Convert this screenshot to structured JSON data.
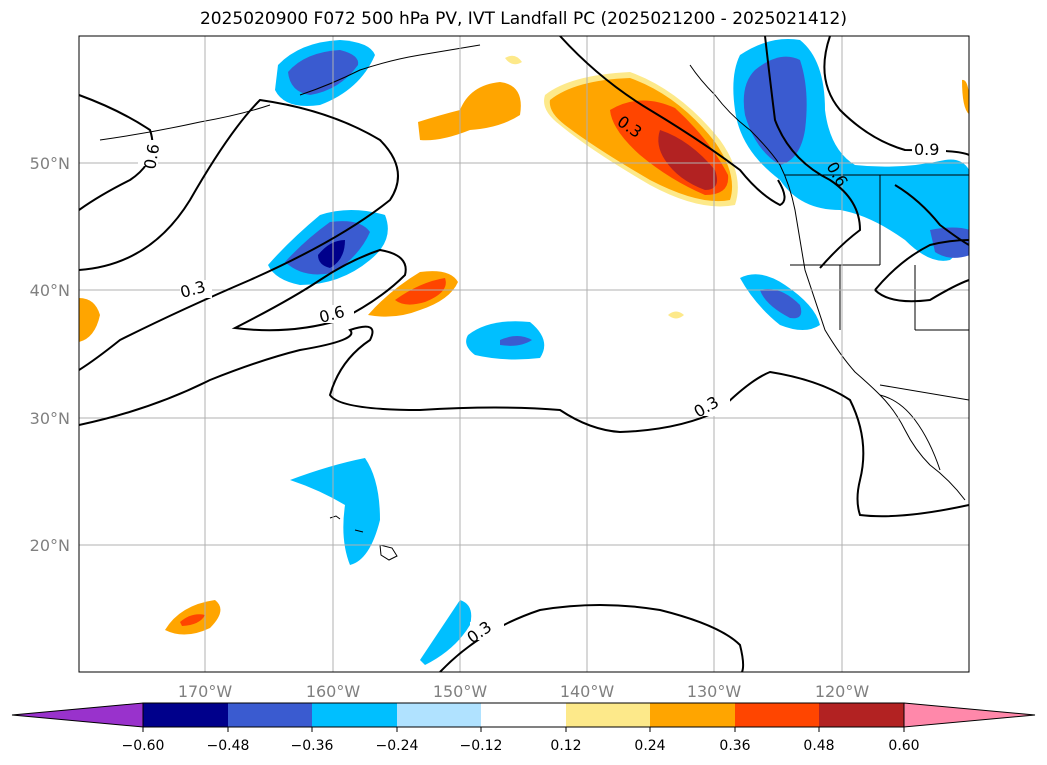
{
  "title": "2025020900 F072 500 hPa PV, IVT Landfall PC (2025021200 - 2025021412)",
  "map": {
    "lon_ticks": [
      "170°W",
      "160°W",
      "150°W",
      "140°W",
      "130°W",
      "120°W"
    ],
    "lat_ticks": [
      "50°N",
      "40°N",
      "30°N",
      "20°N"
    ],
    "gridlines": true
  },
  "contour_labels": [
    "0.6",
    "0.3",
    "0.6",
    "0.3",
    "0.3",
    "0.3",
    "0.6",
    "0.9"
  ],
  "colorbar": {
    "tick_labels": [
      "−0.60",
      "−0.48",
      "−0.36",
      "−0.24",
      "−0.12",
      "0.12",
      "0.24",
      "0.36",
      "0.48",
      "0.60"
    ],
    "colors": [
      "#9932cc",
      "#00008b",
      "#3a5bd0",
      "#00bfff",
      "#b0e2ff",
      "#ffffff",
      "#fde98a",
      "#ffa500",
      "#ff4500",
      "#b22222",
      "#ff88aa"
    ],
    "extend": "both"
  }
}
